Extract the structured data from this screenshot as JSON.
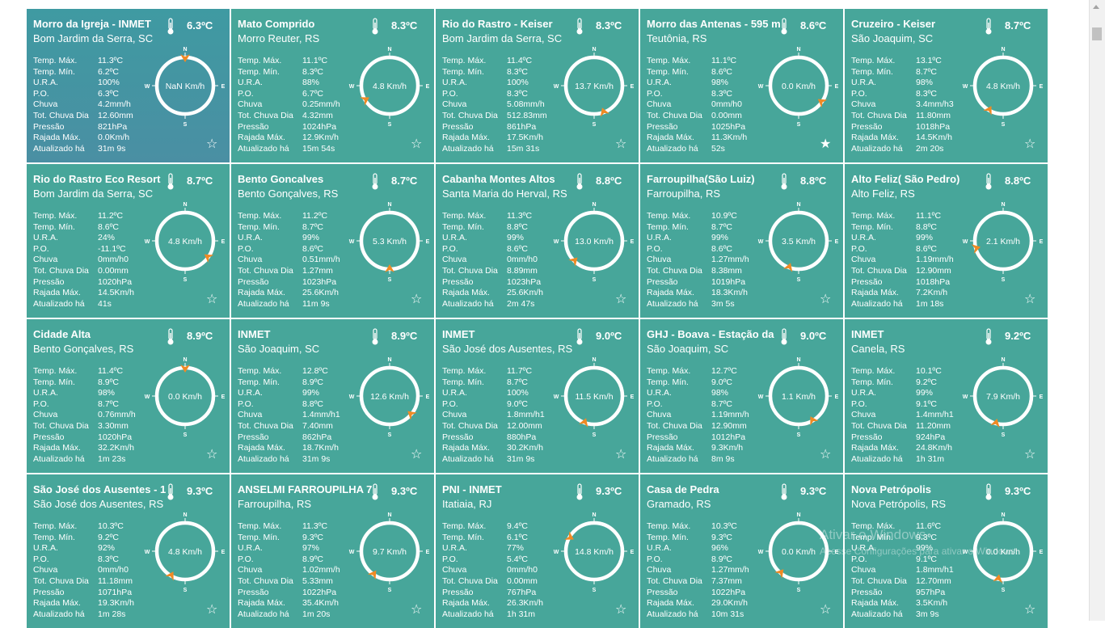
{
  "labels": {
    "temp_max": "Temp. Máx.",
    "temp_min": "Temp. Mín.",
    "ura": "U.R.A.",
    "po": "P.O.",
    "chuva": "Chuva",
    "tot_chuva": "Tot. Chuva Dia",
    "pressao": "Pressão",
    "rajada": "Rajada Máx.",
    "atualizado": "Atualizado há"
  },
  "compass_letters": {
    "n": "N",
    "s": "S",
    "e": "E",
    "w": "W"
  },
  "icons": {
    "thermometer": "thermometer-icon",
    "star": "star-icon",
    "wind_arrow": "wind-arrow-icon"
  },
  "colors": {
    "card": "#47a69a",
    "card_highlight": "#3f9aa2",
    "arrow": "#f08a24",
    "text": "#ffffff"
  },
  "stations": [
    {
      "name": "Morro da Igreja - INMET",
      "location": "Bom Jardim da Serra, SC",
      "temp": "6.3ºC",
      "temp_max": "11.3ºC",
      "temp_min": "6.2ºC",
      "ura": "100%",
      "po": "6.3ºC",
      "chuva": "4.2mm/h",
      "tot_chuva": "12.60mm",
      "pressao": "821hPa",
      "rajada": "0.0Km/h",
      "atualizado": "31m 9s",
      "wind": "NaN Km/h",
      "dir_deg": 0,
      "favorite": false,
      "highlight": true
    },
    {
      "name": "Mato Comprido",
      "location": "Morro Reuter, RS",
      "temp": "8.3ºC",
      "temp_max": "11.1ºC",
      "temp_min": "8.3ºC",
      "ura": "88%",
      "po": "6.7ºC",
      "chuva": "0.25mm/h",
      "tot_chuva": "4.32mm",
      "pressao": "1024hPa",
      "rajada": "12.9Km/h",
      "atualizado": "15m 54s",
      "wind": "4.8 Km/h",
      "dir_deg": 240,
      "favorite": false
    },
    {
      "name": "Rio do Rastro - Keiser",
      "location": "Bom Jardim da Serra, SC",
      "temp": "8.3ºC",
      "temp_max": "11.4ºC",
      "temp_min": "8.3ºC",
      "ura": "100%",
      "po": "8.3ºC",
      "chuva": "5.08mm/h",
      "tot_chuva": "512.83mm",
      "pressao": "861hPa",
      "rajada": "17.5Km/h",
      "atualizado": "15m 31s",
      "wind": "13.7 Km/h",
      "dir_deg": 160,
      "favorite": false
    },
    {
      "name": "Morro das Antenas - 595 m",
      "location": "Teutônia, RS",
      "temp": "8.6ºC",
      "temp_max": "11.1ºC",
      "temp_min": "8.6ºC",
      "ura": "98%",
      "po": "8.3ºC",
      "chuva": "0mm/h0",
      "tot_chuva": "0.00mm",
      "pressao": "1025hPa",
      "rajada": "11.3Km/h",
      "atualizado": "52s",
      "wind": "0.0 Km/h",
      "dir_deg": 125,
      "favorite": true
    },
    {
      "name": "Cruzeiro - Keiser",
      "location": "São Joaquim, SC",
      "temp": "8.7ºC",
      "temp_max": "13.1ºC",
      "temp_min": "8.7ºC",
      "ura": "98%",
      "po": "8.3ºC",
      "chuva": "3.4mm/h3",
      "tot_chuva": "11.80mm",
      "pressao": "1018hPa",
      "rajada": "14.5Km/h",
      "atualizado": "2m 20s",
      "wind": "4.8 Km/h",
      "dir_deg": 210,
      "favorite": false
    },
    {
      "name": "Rio do Rastro Eco Resort",
      "location": "Bom Jardim da Serra, SC",
      "temp": "8.7ºC",
      "temp_max": "11.2ºC",
      "temp_min": "8.6ºC",
      "ura": "24%",
      "po": "-11.1ºC",
      "chuva": "0mm/h0",
      "tot_chuva": "0.00mm",
      "pressao": "1020hPa",
      "rajada": "14.5Km/h",
      "atualizado": "41s",
      "wind": "4.8 Km/h",
      "dir_deg": 125,
      "favorite": false
    },
    {
      "name": "Bento Goncalves",
      "location": "Bento Gonçalves, RS",
      "temp": "8.7ºC",
      "temp_max": "11.2ºC",
      "temp_min": "8.7ºC",
      "ura": "99%",
      "po": "8.6ºC",
      "chuva": "0.51mm/h",
      "tot_chuva": "1.27mm",
      "pressao": "1023hPa",
      "rajada": "25.6Km/h",
      "atualizado": "11m 9s",
      "wind": "5.3 Km/h",
      "dir_deg": 180,
      "favorite": false
    },
    {
      "name": "Cabanha Montes Altos",
      "location": "Santa Maria do Herval, RS",
      "temp": "8.8ºC",
      "temp_max": "11.3ºC",
      "temp_min": "8.8ºC",
      "ura": "99%",
      "po": "8.6ºC",
      "chuva": "0mm/h0",
      "tot_chuva": "8.89mm",
      "pressao": "1023hPa",
      "rajada": "25.6Km/h",
      "atualizado": "2m 47s",
      "wind": "13.0 Km/h",
      "dir_deg": 225,
      "favorite": false
    },
    {
      "name": "Farroupilha(São Luiz)",
      "location": "Farroupilha, RS",
      "temp": "8.8ºC",
      "temp_max": "10.9ºC",
      "temp_min": "8.7ºC",
      "ura": "99%",
      "po": "8.6ºC",
      "chuva": "1.27mm/h",
      "tot_chuva": "8.38mm",
      "pressao": "1019hPa",
      "rajada": "18.3Km/h",
      "atualizado": "3m 5s",
      "wind": "3.5 Km/h",
      "dir_deg": 200,
      "favorite": false
    },
    {
      "name": "Alto Feliz( São Pedro)",
      "location": "Alto Feliz, RS",
      "temp": "8.8ºC",
      "temp_max": "11.1ºC",
      "temp_min": "8.8ºC",
      "ura": "99%",
      "po": "8.6ºC",
      "chuva": "1.19mm/h",
      "tot_chuva": "12.90mm",
      "pressao": "1018hPa",
      "rajada": "7.2Km/h",
      "atualizado": "1m 18s",
      "wind": "2.1 Km/h",
      "dir_deg": 255,
      "favorite": false
    },
    {
      "name": "Cidade Alta",
      "location": "Bento Gonçalves, RS",
      "temp": "8.9ºC",
      "temp_max": "11.4ºC",
      "temp_min": "8.9ºC",
      "ura": "98%",
      "po": "8.7ºC",
      "chuva": "0.76mm/h",
      "tot_chuva": "3.30mm",
      "pressao": "1020hPa",
      "rajada": "32.2Km/h",
      "atualizado": "1m 23s",
      "wind": "0.0 Km/h",
      "dir_deg": 0,
      "favorite": false
    },
    {
      "name": "INMET",
      "location": "São Joaquim, SC",
      "temp": "8.9ºC",
      "temp_max": "12.8ºC",
      "temp_min": "8.9ºC",
      "ura": "99%",
      "po": "8.8ºC",
      "chuva": "1.4mm/h1",
      "tot_chuva": "7.40mm",
      "pressao": "862hPa",
      "rajada": "18.7Km/h",
      "atualizado": "31m 9s",
      "wind": "12.6 Km/h",
      "dir_deg": 130,
      "favorite": false
    },
    {
      "name": "INMET",
      "location": "São José dos Ausentes, RS",
      "temp": "9.0ºC",
      "temp_max": "11.7ºC",
      "temp_min": "8.7ºC",
      "ura": "100%",
      "po": "9.0ºC",
      "chuva": "1.8mm/h1",
      "tot_chuva": "12.00mm",
      "pressao": "880hPa",
      "rajada": "30.2Km/h",
      "atualizado": "31m 9s",
      "wind": "11.5 Km/h",
      "dir_deg": 200,
      "favorite": false
    },
    {
      "name": "GHJ - Boava - Estação da",
      "location": "São Joaquim, SC",
      "temp": "9.0ºC",
      "temp_max": "12.7ºC",
      "temp_min": "9.0ºC",
      "ura": "98%",
      "po": "8.7ºC",
      "chuva": "1.19mm/h",
      "tot_chuva": "12.90mm",
      "pressao": "1012hPa",
      "rajada": "9.3Km/h",
      "atualizado": "8m 9s",
      "wind": "1.1 Km/h",
      "dir_deg": 150,
      "favorite": false
    },
    {
      "name": "INMET",
      "location": "Canela, RS",
      "temp": "9.2ºC",
      "temp_max": "10.1ºC",
      "temp_min": "9.2ºC",
      "ura": "99%",
      "po": "9.1ºC",
      "chuva": "1.4mm/h1",
      "tot_chuva": "11.20mm",
      "pressao": "924hPa",
      "rajada": "24.8Km/h",
      "atualizado": "1h 31m",
      "wind": "7.9 Km/h",
      "dir_deg": 195,
      "favorite": false
    },
    {
      "name": "São José dos Ausentes - 1",
      "location": "São José dos Ausentes, RS",
      "temp": "9.3ºC",
      "temp_max": "10.3ºC",
      "temp_min": "9.2ºC",
      "ura": "92%",
      "po": "8.3ºC",
      "chuva": "0mm/h0",
      "tot_chuva": "11.18mm",
      "pressao": "1071hPa",
      "rajada": "19.3Km/h",
      "atualizado": "1m 28s",
      "wind": "4.8 Km/h",
      "dir_deg": 210,
      "favorite": false
    },
    {
      "name": "ANSELMI FARROUPILHA 7",
      "location": "Farroupilha, RS",
      "temp": "9.3ºC",
      "temp_max": "11.3ºC",
      "temp_min": "9.3ºC",
      "ura": "97%",
      "po": "8.9ºC",
      "chuva": "1.02mm/h",
      "tot_chuva": "5.33mm",
      "pressao": "1022hPa",
      "rajada": "35.4Km/h",
      "atualizado": "1m 20s",
      "wind": "9.7 Km/h",
      "dir_deg": 215,
      "favorite": false
    },
    {
      "name": "PNI - INMET",
      "location": "Itatiaia, RJ",
      "temp": "9.3ºC",
      "temp_max": "9.4ºC",
      "temp_min": "6.1ºC",
      "ura": "77%",
      "po": "5.4ºC",
      "chuva": "0mm/h0",
      "tot_chuva": "0.00mm",
      "pressao": "767hPa",
      "rajada": "26.3Km/h",
      "atualizado": "1h 31m",
      "wind": "14.8 Km/h",
      "dir_deg": 300,
      "favorite": false
    },
    {
      "name": "Casa de Pedra",
      "location": "Gramado, RS",
      "temp": "9.3ºC",
      "temp_max": "10.3ºC",
      "temp_min": "9.3ºC",
      "ura": "96%",
      "po": "8.9ºC",
      "chuva": "1.27mm/h",
      "tot_chuva": "7.37mm",
      "pressao": "1022hPa",
      "rajada": "29.0Km/h",
      "atualizado": "10m 31s",
      "wind": "0.0 Km/h",
      "dir_deg": 220,
      "favorite": false
    },
    {
      "name": "Nova Petrópolis",
      "location": "Nova Petrópolis, RS",
      "temp": "9.3ºC",
      "temp_max": "11.6ºC",
      "temp_min": "9.3ºC",
      "ura": "99%",
      "po": "9.1ºC",
      "chuva": "1.8mm/h1",
      "tot_chuva": "12.70mm",
      "pressao": "957hPa",
      "rajada": "3.5Km/h",
      "atualizado": "3m 9s",
      "wind": "0.0 Km/h",
      "dir_deg": 190,
      "favorite": false
    }
  ],
  "watermark": {
    "line1": "Ativar o Windows",
    "line2": "Acesse Configurações para ativar o Windows."
  }
}
